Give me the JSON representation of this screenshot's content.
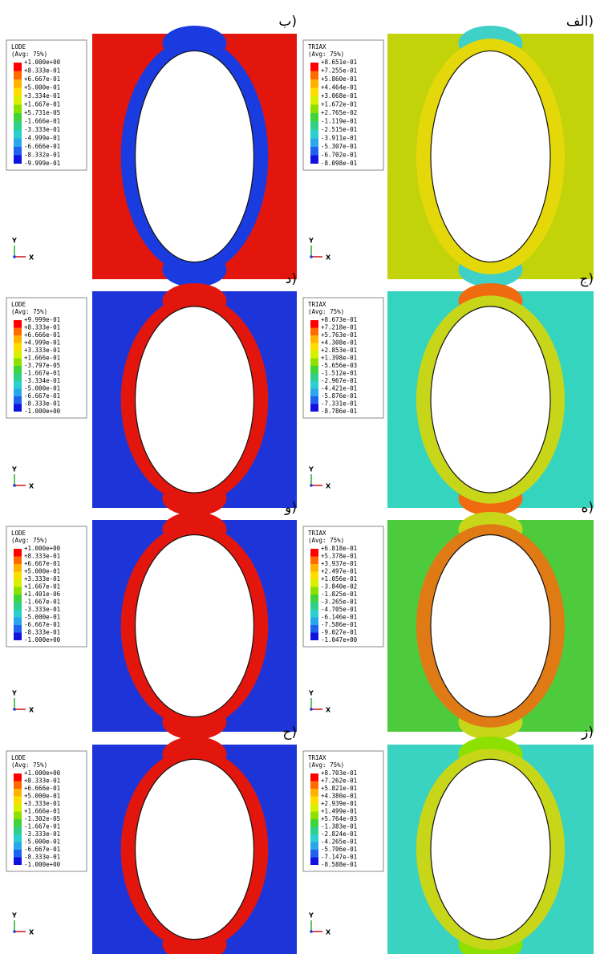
{
  "triad": {
    "x": "X",
    "y": "Y"
  },
  "panels": [
    {
      "label": "الف)",
      "title": "TRIAX",
      "avg": "(Avg: 75%)",
      "values": [
        "+8.651e-01",
        "+7.255e-01",
        "+5.860e-01",
        "+4.464e-01",
        "+3.068e-01",
        "+1.672e-01",
        "+2.765e-02",
        "-1.119e-01",
        "-2.515e-01",
        "-3.911e-01",
        "-5.307e-01",
        "-6.702e-01",
        "-8.098e-01"
      ]
    },
    {
      "label": "ب)",
      "title": "LODE",
      "avg": "(Avg: 75%)",
      "values": [
        "+1.000e+00",
        "+8.333e-01",
        "+6.667e-01",
        "+5.000e-01",
        "+3.334e-01",
        "+1.667e-01",
        "+5.731e-05",
        "-1.666e-01",
        "-3.333e-01",
        "-4.999e-01",
        "-6.666e-01",
        "-8.332e-01",
        "-9.999e-01"
      ]
    },
    {
      "label": "ج)",
      "title": "TRIAX",
      "avg": "(Avg: 75%)",
      "values": [
        "+8.673e-01",
        "+7.218e-01",
        "+5.763e-01",
        "+4.308e-01",
        "+2.853e-01",
        "+1.398e-01",
        "-5.656e-03",
        "-1.512e-01",
        "-2.967e-01",
        "-4.421e-01",
        "-5.876e-01",
        "-7.331e-01",
        "-8.786e-01"
      ]
    },
    {
      "label": "د)",
      "title": "LODE",
      "avg": "(Avg: 75%)",
      "values": [
        "+9.999e-01",
        "+8.333e-01",
        "+6.666e-01",
        "+4.999e-01",
        "+3.333e-01",
        "+1.666e-01",
        "-3.797e-05",
        "-1.667e-01",
        "-3.334e-01",
        "-5.000e-01",
        "-6.667e-01",
        "-8.333e-01",
        "-1.000e+00"
      ]
    },
    {
      "label": "ه)",
      "title": "TRIAX",
      "avg": "(Avg: 75%)",
      "values": [
        "+6.818e-01",
        "+5.378e-01",
        "+3.937e-01",
        "+2.497e-01",
        "+1.056e-01",
        "-3.840e-02",
        "-1.825e-01",
        "-3.265e-01",
        "-4.705e-01",
        "-6.146e-01",
        "-7.586e-01",
        "-9.027e-01",
        "-1.047e+00"
      ]
    },
    {
      "label": "و)",
      "title": "LODE",
      "avg": "(Avg: 75%)",
      "values": [
        "+1.000e+00",
        "+8.333e-01",
        "+6.667e-01",
        "+5.000e-01",
        "+3.333e-01",
        "+1.667e-01",
        "+1.401e-06",
        "-1.667e-01",
        "-3.333e-01",
        "-5.000e-01",
        "-6.667e-01",
        "-8.333e-01",
        "-1.000e+00"
      ]
    },
    {
      "label": "ز)",
      "title": "TRIAX",
      "avg": "(Avg: 75%)",
      "values": [
        "+8.703e-01",
        "+7.262e-01",
        "+5.821e-01",
        "+4.380e-01",
        "+2.939e-01",
        "+1.499e-01",
        "+5.764e-03",
        "-1.383e-01",
        "-2.824e-01",
        "-4.265e-01",
        "-5.706e-01",
        "-7.147e-01",
        "-8.588e-01"
      ]
    },
    {
      "label": "ح)",
      "title": "LODE",
      "avg": "(Avg: 75%)",
      "values": [
        "+1.000e+00",
        "+8.333e-01",
        "+6.666e-01",
        "+5.000e-01",
        "+3.333e-01",
        "+1.666e-01",
        "-1.302e-05",
        "-1.667e-01",
        "-3.333e-01",
        "-5.000e-01",
        "-6.667e-01",
        "-8.333e-01",
        "-1.000e+00"
      ]
    }
  ]
}
